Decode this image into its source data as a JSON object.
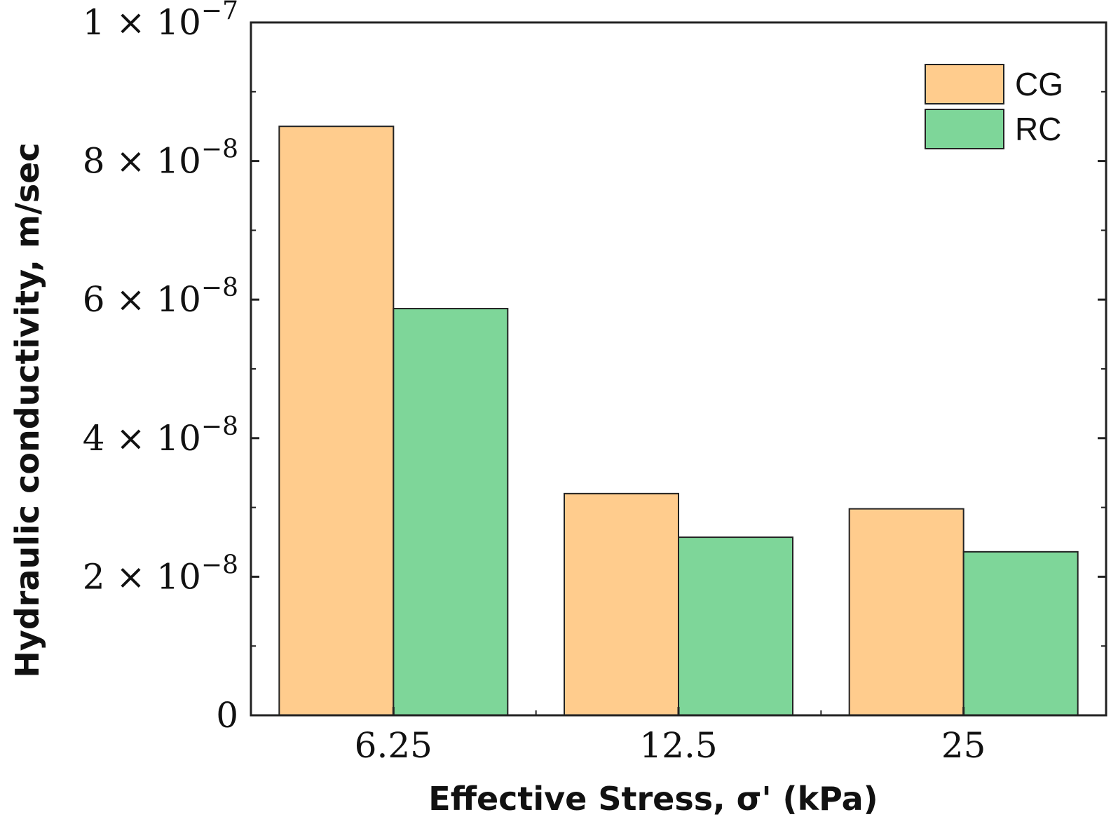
{
  "chart_data": {
    "type": "bar",
    "title": "",
    "categories": [
      "6.25",
      "12.5",
      "25"
    ],
    "series": [
      {
        "name": "CG",
        "color": "#FFCC8D",
        "values": [
          8.5e-08,
          3.2e-08,
          2.98e-08
        ]
      },
      {
        "name": "RC",
        "color": "#7ED699",
        "values": [
          5.87e-08,
          2.57e-08,
          2.36e-08
        ]
      }
    ],
    "xlabel": "Effective Stress, σ' (kPa)",
    "ylabel": "Hydraulic conductivity, m/sec",
    "ylim": [
      0,
      1e-07
    ],
    "yticks": [
      {
        "value": 0,
        "mantissa": "0",
        "exponent": ""
      },
      {
        "value": 2e-08,
        "mantissa": "2 × 10",
        "exponent": "−8"
      },
      {
        "value": 4e-08,
        "mantissa": "4 × 10",
        "exponent": "−8"
      },
      {
        "value": 6e-08,
        "mantissa": "6 × 10",
        "exponent": "−8"
      },
      {
        "value": 8e-08,
        "mantissa": "8 × 10",
        "exponent": "−8"
      },
      {
        "value": 1e-07,
        "mantissa": "1 × 10",
        "exponent": "−7"
      }
    ],
    "grid": false,
    "legend_position": "top-right"
  }
}
